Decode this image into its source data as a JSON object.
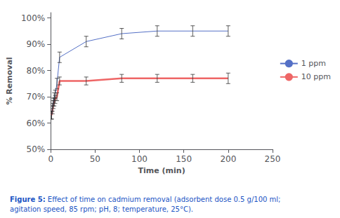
{
  "chart_data": {
    "type": "line",
    "xlabel": "Time (min)",
    "ylabel": "% Removal",
    "x": [
      1,
      2,
      3,
      4,
      5,
      7,
      10,
      40,
      80,
      120,
      160,
      200
    ],
    "series": [
      {
        "name": "1 ppm",
        "values": [
          63,
          66,
          68,
          70,
          71,
          75,
          85,
          91,
          94,
          95,
          95,
          95
        ],
        "yerr": [
          1.5,
          1.5,
          1.5,
          1.5,
          1.5,
          2.0,
          2.0,
          2.0,
          2.0,
          2.0,
          2.0,
          2.0
        ]
      },
      {
        "name": "10 ppm",
        "values": [
          63,
          65,
          67,
          68,
          69,
          70,
          76,
          76,
          77,
          77,
          77,
          77
        ],
        "yerr": [
          1.5,
          1.5,
          1.5,
          1.5,
          1.5,
          1.5,
          1.5,
          1.5,
          1.5,
          1.5,
          1.5,
          2.0
        ]
      }
    ],
    "xlim": [
      0,
      250
    ],
    "ylim": [
      50,
      102
    ],
    "xticks": [
      0,
      50,
      100,
      150,
      200,
      250
    ],
    "yticks": [
      {
        "value": 50,
        "label": "50%"
      },
      {
        "value": 60,
        "label": "60%"
      },
      {
        "value": 70,
        "label": "70%"
      },
      {
        "value": 80,
        "label": "80%"
      },
      {
        "value": 90,
        "label": "90%"
      },
      {
        "value": 100,
        "label": "100%"
      }
    ],
    "grid": false,
    "legend": "right",
    "annotations": [
      "Figure 5:",
      "Effect of time on cadmium removal (adsorbent dose 0.5 g/100 ml;",
      "agitation speed, 85 rpm; pH, 8; temperature, 25°C)."
    ]
  }
}
